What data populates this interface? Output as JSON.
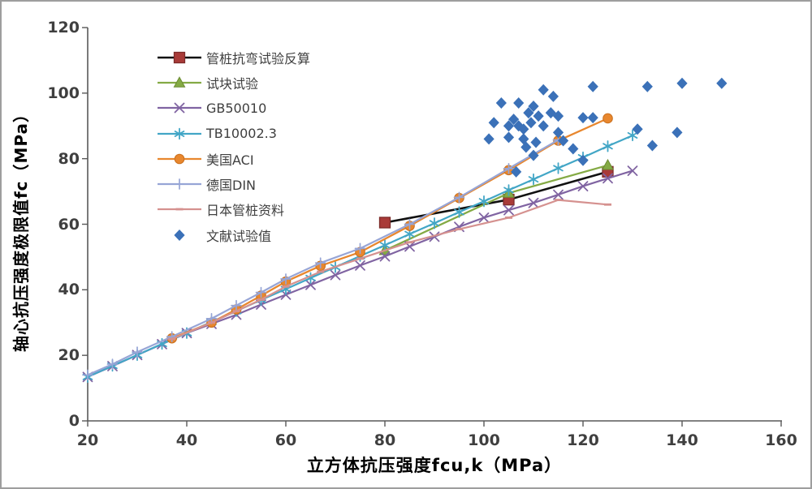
{
  "chart_data": {
    "type": "line-scatter",
    "title": "",
    "xlabel": "立方体抗压强度fcu,k（MPa）",
    "ylabel": "轴心抗压强度极限值fc（MPa）",
    "xlim": [
      20,
      160
    ],
    "ylim": [
      0,
      120
    ],
    "x_ticks": [
      20,
      40,
      60,
      80,
      100,
      120,
      140,
      160
    ],
    "y_ticks": [
      0,
      20,
      40,
      60,
      80,
      100,
      120
    ],
    "grid": false,
    "legend_position": "top-left-inside",
    "axis_color": "#595959",
    "tick_text_color": "#3f3f3f",
    "series": [
      {
        "name": "管桩抗弯试验反算",
        "marker": "square",
        "line_color": "#111111",
        "line_width": 2.6,
        "marker_color": "#a93b38",
        "marker_edge": "#7d2b29",
        "points": [
          [
            80,
            60.5
          ],
          [
            105,
            67.5
          ],
          [
            125,
            76
          ]
        ]
      },
      {
        "name": "试块试验",
        "marker": "triangle",
        "line_color": "#84aa44",
        "line_width": 2.3,
        "marker_color": "#84aa44",
        "marker_edge": "#6c8c33",
        "points": [
          [
            80,
            52
          ],
          [
            105,
            69.5
          ],
          [
            125,
            78
          ]
        ]
      },
      {
        "name": "GB50010",
        "marker": "x",
        "line_color": "#8064a2",
        "line_width": 2.2,
        "marker_color": "#8064a2",
        "marker_edge": "#8064a2",
        "points": [
          [
            20,
            13.4
          ],
          [
            25,
            16.7
          ],
          [
            30,
            20.1
          ],
          [
            35,
            23.4
          ],
          [
            40,
            26.8
          ],
          [
            45,
            29.6
          ],
          [
            50,
            32.4
          ],
          [
            55,
            35.5
          ],
          [
            60,
            38.5
          ],
          [
            65,
            41.5
          ],
          [
            70,
            44.5
          ],
          [
            75,
            47.4
          ],
          [
            80,
            50.2
          ],
          [
            85,
            53.2
          ],
          [
            90,
            56.2
          ],
          [
            95,
            59.2
          ],
          [
            100,
            62
          ],
          [
            105,
            64.3
          ],
          [
            110,
            66.5
          ],
          [
            115,
            69
          ],
          [
            120,
            71.6
          ],
          [
            125,
            74
          ],
          [
            130,
            76.3
          ]
        ]
      },
      {
        "name": "TB10002.3",
        "marker": "asterisk",
        "line_color": "#42a6c6",
        "line_width": 2.2,
        "marker_color": "#42a6c6",
        "marker_edge": "#42a6c6",
        "points": [
          [
            20,
            13.4
          ],
          [
            25,
            16.8
          ],
          [
            30,
            20.1
          ],
          [
            35,
            23.5
          ],
          [
            40,
            26.8
          ],
          [
            45,
            30.2
          ],
          [
            50,
            33.5
          ],
          [
            55,
            36.9
          ],
          [
            60,
            40.2
          ],
          [
            65,
            43.6
          ],
          [
            70,
            46.9
          ],
          [
            75,
            50.3
          ],
          [
            80,
            53.6
          ],
          [
            85,
            57
          ],
          [
            90,
            60.3
          ],
          [
            95,
            63.7
          ],
          [
            100,
            67
          ],
          [
            105,
            70.4
          ],
          [
            110,
            73.7
          ],
          [
            115,
            77.1
          ],
          [
            120,
            80.4
          ],
          [
            125,
            83.8
          ],
          [
            130,
            87.1
          ]
        ]
      },
      {
        "name": "美国ACI",
        "marker": "circle",
        "line_color": "#e8872e",
        "line_width": 2.3,
        "marker_color": "#e8872e",
        "marker_edge": "#c96f1d",
        "points": [
          [
            37,
            25.2
          ],
          [
            45,
            30
          ],
          [
            50,
            34
          ],
          [
            55,
            38.2
          ],
          [
            60,
            42.5
          ],
          [
            67,
            47.3
          ],
          [
            75,
            51.5
          ],
          [
            85,
            59.5
          ],
          [
            95,
            68
          ],
          [
            105,
            76.5
          ],
          [
            115,
            85.5
          ],
          [
            125,
            92.3
          ]
        ]
      },
      {
        "name": "德国DIN",
        "marker": "plus",
        "line_color": "#97a5d6",
        "line_width": 2.2,
        "marker_color": "#97a5d6",
        "marker_edge": "#97a5d6",
        "points": [
          [
            20,
            14
          ],
          [
            25,
            17.3
          ],
          [
            30,
            21
          ],
          [
            37,
            25.7
          ],
          [
            45,
            31.2
          ],
          [
            50,
            35.2
          ],
          [
            55,
            39.2
          ],
          [
            60,
            43.3
          ],
          [
            67,
            48.2
          ],
          [
            75,
            52.6
          ],
          [
            85,
            60
          ],
          [
            95,
            68.2
          ],
          [
            105,
            77
          ],
          [
            115,
            85.7
          ]
        ]
      },
      {
        "name": "日本管桩资料",
        "marker": "dash",
        "line_color": "#d5918f",
        "line_width": 2.2,
        "marker_color": "#d5918f",
        "marker_edge": "#d5918f",
        "points": [
          [
            37,
            25
          ],
          [
            45,
            30
          ],
          [
            50,
            33.5
          ],
          [
            55,
            37
          ],
          [
            60,
            41
          ],
          [
            67,
            45.5
          ],
          [
            75,
            49.5
          ],
          [
            85,
            54.5
          ],
          [
            95,
            58.5
          ],
          [
            105,
            62
          ],
          [
            115,
            67.4
          ],
          [
            125,
            66
          ]
        ]
      },
      {
        "name": "文献试验值",
        "marker": "diamond",
        "line_color": "none",
        "line_width": 0,
        "marker_color": "#3b71b8",
        "marker_edge": "#3b71b8",
        "points": [
          [
            101,
            86
          ],
          [
            102,
            91
          ],
          [
            103.5,
            97
          ],
          [
            105,
            90
          ],
          [
            105,
            86.5
          ],
          [
            106,
            92
          ],
          [
            106.5,
            76
          ],
          [
            107,
            97
          ],
          [
            107,
            90
          ],
          [
            108,
            86
          ],
          [
            108,
            89
          ],
          [
            108.5,
            83.5
          ],
          [
            109,
            94
          ],
          [
            109.5,
            91
          ],
          [
            110,
            96
          ],
          [
            110,
            81
          ],
          [
            110.5,
            85
          ],
          [
            111,
            93
          ],
          [
            112,
            101
          ],
          [
            112,
            90
          ],
          [
            113.5,
            94
          ],
          [
            114,
            99
          ],
          [
            115,
            93
          ],
          [
            115,
            88
          ],
          [
            116,
            85.5
          ],
          [
            118,
            83
          ],
          [
            120,
            92.5
          ],
          [
            120,
            79.5
          ],
          [
            122,
            102
          ],
          [
            122,
            92.5
          ],
          [
            131,
            89
          ],
          [
            133,
            102
          ],
          [
            134,
            84
          ],
          [
            139,
            88
          ],
          [
            140,
            103
          ],
          [
            148,
            103
          ]
        ]
      }
    ]
  }
}
